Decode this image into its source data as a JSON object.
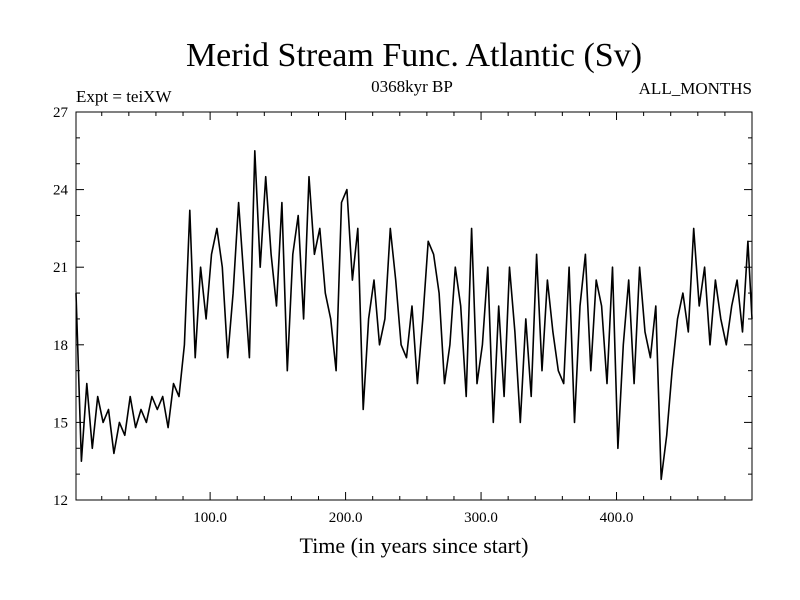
{
  "chart_data": {
    "type": "line",
    "title": "Merid Stream Func. Atlantic (Sv)",
    "left_label": "Expt = teiXW",
    "center_label": "0368kyr BP",
    "right_label": "ALL_MONTHS",
    "xlabel": "Time (in years since start)",
    "ylabel": "",
    "xlim": [
      1,
      500
    ],
    "ylim": [
      12,
      27
    ],
    "xticks": [
      100,
      200,
      300,
      400
    ],
    "xtick_labels": [
      "100.0",
      "200.0",
      "300.0",
      "400.0"
    ],
    "yticks": [
      12,
      15,
      18,
      21,
      24,
      27
    ],
    "ytick_labels": [
      "12",
      "15",
      "18",
      "21",
      "24",
      "27"
    ],
    "series": [
      {
        "name": "Merid Stream Func. Atlantic",
        "color": "#000000",
        "x": [
          1,
          5,
          9,
          13,
          17,
          21,
          25,
          29,
          33,
          37,
          41,
          45,
          49,
          53,
          57,
          61,
          65,
          69,
          73,
          77,
          81,
          85,
          89,
          93,
          97,
          101,
          105,
          109,
          113,
          117,
          121,
          125,
          129,
          133,
          137,
          141,
          145,
          149,
          153,
          157,
          161,
          165,
          169,
          173,
          177,
          181,
          185,
          189,
          193,
          197,
          201,
          205,
          209,
          213,
          217,
          221,
          225,
          229,
          233,
          237,
          241,
          245,
          249,
          253,
          257,
          261,
          265,
          269,
          273,
          277,
          281,
          285,
          289,
          293,
          297,
          301,
          305,
          309,
          313,
          317,
          321,
          325,
          329,
          333,
          337,
          341,
          345,
          349,
          353,
          357,
          361,
          365,
          369,
          373,
          377,
          381,
          385,
          389,
          393,
          397,
          401,
          405,
          409,
          413,
          417,
          421,
          425,
          429,
          433,
          437,
          441,
          445,
          449,
          453,
          457,
          461,
          465,
          469,
          473,
          477,
          481,
          485,
          489,
          493,
          497,
          500
        ],
        "values": [
          20.0,
          13.5,
          16.5,
          14.0,
          16.0,
          15.0,
          15.5,
          13.8,
          15.0,
          14.5,
          16.0,
          14.8,
          15.5,
          15.0,
          16.0,
          15.5,
          16.0,
          14.8,
          16.5,
          16.0,
          18.0,
          23.2,
          17.5,
          21.0,
          19.0,
          21.5,
          22.5,
          21.0,
          17.5,
          20.0,
          23.5,
          20.5,
          17.5,
          25.5,
          21.0,
          24.5,
          21.5,
          19.5,
          23.5,
          17.0,
          21.5,
          23.0,
          19.0,
          24.5,
          21.5,
          22.5,
          20.0,
          19.0,
          17.0,
          23.5,
          24.0,
          20.5,
          22.5,
          15.5,
          19.0,
          20.5,
          18.0,
          19.0,
          22.5,
          20.5,
          18.0,
          17.5,
          19.5,
          16.5,
          19.0,
          22.0,
          21.5,
          20.0,
          16.5,
          18.0,
          21.0,
          19.5,
          16.0,
          22.5,
          16.5,
          18.0,
          21.0,
          15.0,
          19.5,
          16.0,
          21.0,
          18.5,
          15.0,
          19.0,
          16.0,
          21.5,
          17.0,
          20.5,
          18.5,
          17.0,
          16.5,
          21.0,
          15.0,
          19.5,
          21.5,
          17.0,
          20.5,
          19.5,
          16.5,
          21.0,
          14.0,
          18.0,
          20.5,
          16.5,
          21.0,
          18.5,
          17.5,
          19.5,
          12.8,
          14.5,
          17.0,
          19.0,
          20.0,
          18.5,
          22.5,
          19.5,
          21.0,
          18.0,
          20.5,
          19.0,
          18.0,
          19.5,
          20.5,
          18.5,
          22.0,
          19.0
        ]
      }
    ]
  }
}
